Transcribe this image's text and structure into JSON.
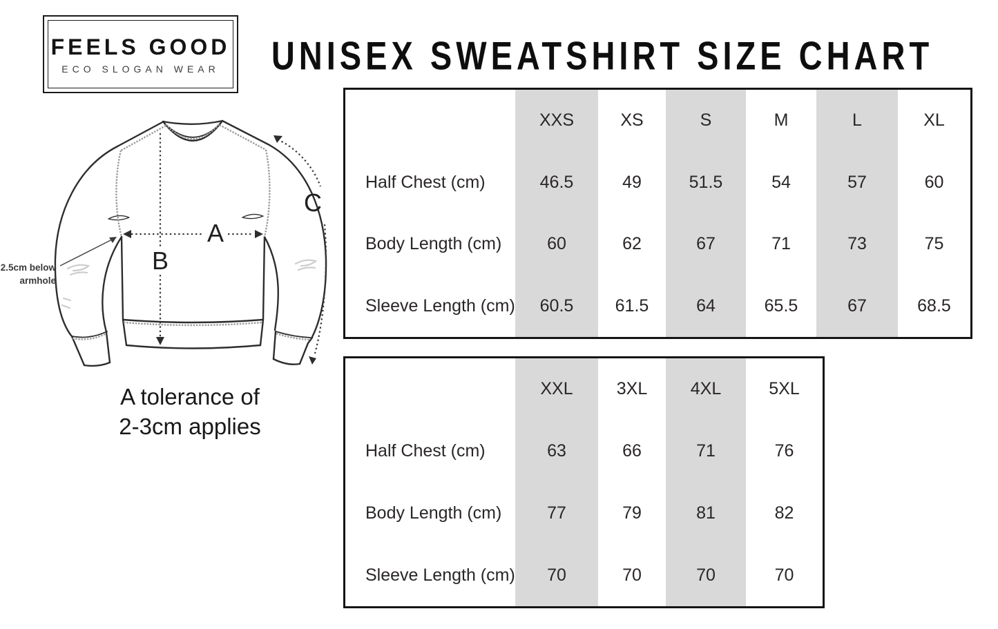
{
  "brand": {
    "name": "FEELS GOOD",
    "tagline": "ECO SLOGAN WEAR"
  },
  "title": "UNISEX SWEATSHIRT SIZE CHART",
  "diagram": {
    "measure_a": "A",
    "measure_b": "B",
    "measure_c": "C",
    "armhole_note_line1": "2.5cm below",
    "armhole_note_line2": "armhole",
    "tolerance_line1": "A tolerance of",
    "tolerance_line2": "2-3cm applies"
  },
  "tables": [
    {
      "columns": [
        "XXS",
        "XS",
        "S",
        "M",
        "L",
        "XL"
      ],
      "shaded_columns": [
        0,
        2,
        4
      ],
      "rows": [
        {
          "label": "Half Chest (cm)",
          "values": [
            "46.5",
            "49",
            "51.5",
            "54",
            "57",
            "60"
          ]
        },
        {
          "label": "Body Length (cm)",
          "values": [
            "60",
            "62",
            "67",
            "71",
            "73",
            "75"
          ]
        },
        {
          "label": "Sleeve Length (cm)",
          "values": [
            "60.5",
            "61.5",
            "64",
            "65.5",
            "67",
            "68.5"
          ]
        }
      ]
    },
    {
      "columns": [
        "XXL",
        "3XL",
        "4XL",
        "5XL"
      ],
      "shaded_columns": [
        0,
        2
      ],
      "rows": [
        {
          "label": "Half Chest (cm)",
          "values": [
            "63",
            "66",
            "71",
            "76"
          ]
        },
        {
          "label": "Body Length (cm)",
          "values": [
            "77",
            "79",
            "81",
            "82"
          ]
        },
        {
          "label": "Sleeve Length (cm)",
          "values": [
            "70",
            "70",
            "70",
            "70"
          ]
        }
      ]
    }
  ],
  "colors": {
    "shaded_column": "#d9d9d9",
    "table_border": "#141414",
    "text": "#262223"
  }
}
